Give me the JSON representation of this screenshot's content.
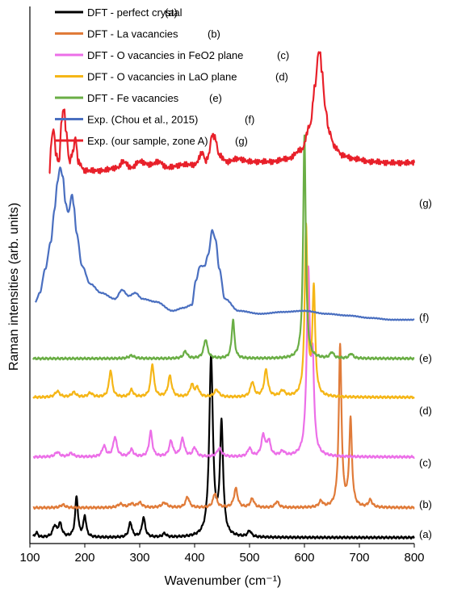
{
  "chart_data": {
    "type": "line",
    "xlabel": "Wavenumber (cm⁻¹)",
    "ylabel": "Raman intensities (arb. units)",
    "xlim": [
      100,
      800
    ],
    "x_ticks": [
      "100",
      "200",
      "300",
      "400",
      "500",
      "600",
      "700",
      "800"
    ],
    "grid": false,
    "legend_position": "top-left",
    "series": [
      {
        "name": "DFT - perfect crystal",
        "tag": "(a)",
        "color": "#000000",
        "baseline": 0,
        "peaks": [
          [
            112,
            0.08,
            3
          ],
          [
            145,
            0.18,
            4
          ],
          [
            155,
            0.22,
            4
          ],
          [
            185,
            0.68,
            3
          ],
          [
            200,
            0.35,
            3
          ],
          [
            283,
            0.25,
            3.5
          ],
          [
            307,
            0.33,
            3.5
          ],
          [
            345,
            0.06,
            4
          ],
          [
            430,
            3.0,
            4
          ],
          [
            449,
            1.85,
            3.5
          ],
          [
            500,
            0.1,
            4
          ]
        ]
      },
      {
        "name": "DFT - La vacancies",
        "tag": "(b)",
        "color": "#E07B39",
        "baseline": 0.5,
        "peaks": [
          [
            160,
            0.05,
            5
          ],
          [
            265,
            0.06,
            6
          ],
          [
            285,
            0.06,
            5
          ],
          [
            300,
            0.08,
            5
          ],
          [
            345,
            0.08,
            6
          ],
          [
            387,
            0.18,
            4
          ],
          [
            437,
            0.24,
            4
          ],
          [
            475,
            0.32,
            4
          ],
          [
            505,
            0.15,
            4
          ],
          [
            550,
            0.1,
            4
          ],
          [
            630,
            0.1,
            4
          ],
          [
            665,
            2.7,
            3
          ],
          [
            684,
            1.45,
            3
          ],
          [
            720,
            0.12,
            4
          ]
        ]
      },
      {
        "name": "DFT - O vacancies in FeO2 plane",
        "tag": "(c)",
        "color": "#EC6FE8",
        "baseline": 1.35,
        "peaks": [
          [
            150,
            0.08,
            5
          ],
          [
            175,
            0.06,
            5
          ],
          [
            235,
            0.18,
            4
          ],
          [
            255,
            0.33,
            4
          ],
          [
            285,
            0.12,
            4
          ],
          [
            320,
            0.42,
            3.5
          ],
          [
            357,
            0.26,
            4
          ],
          [
            378,
            0.3,
            4
          ],
          [
            400,
            0.15,
            4
          ],
          [
            445,
            0.14,
            5
          ],
          [
            500,
            0.14,
            4
          ],
          [
            525,
            0.35,
            4
          ],
          [
            535,
            0.25,
            4
          ],
          [
            560,
            0.08,
            5
          ],
          [
            607,
            3.0,
            3.5
          ],
          [
            615,
            1.4,
            3
          ]
        ]
      },
      {
        "name": "DFT - O vacancies in LaO plane",
        "tag": "(d)",
        "color": "#F5B617",
        "baseline": 2.35,
        "peaks": [
          [
            150,
            0.1,
            5
          ],
          [
            180,
            0.08,
            5
          ],
          [
            210,
            0.07,
            5
          ],
          [
            247,
            0.45,
            3.5
          ],
          [
            285,
            0.12,
            4
          ],
          [
            323,
            0.55,
            3.5
          ],
          [
            355,
            0.35,
            4
          ],
          [
            395,
            0.2,
            4
          ],
          [
            405,
            0.15,
            4
          ],
          [
            440,
            0.12,
            5
          ],
          [
            505,
            0.25,
            4
          ],
          [
            530,
            0.45,
            4
          ],
          [
            560,
            0.1,
            5
          ],
          [
            603,
            2.85,
            3
          ],
          [
            617,
            1.8,
            3
          ]
        ]
      },
      {
        "name": "DFT - Fe vacancies",
        "tag": "(e)",
        "color": "#6AAE45",
        "baseline": 3.0,
        "peaks": [
          [
            285,
            0.05,
            6
          ],
          [
            383,
            0.12,
            4
          ],
          [
            420,
            0.32,
            4
          ],
          [
            470,
            0.65,
            3
          ],
          [
            600,
            3.75,
            2.8
          ],
          [
            650,
            0.1,
            4
          ],
          [
            685,
            0.08,
            4
          ]
        ]
      },
      {
        "name": "Exp. (Chou et al., 2015)",
        "tag": "(f)",
        "color": "#4A6FC0",
        "baseline": 3.65,
        "peaks": []
      },
      {
        "name": "Exp. (our sample, zone A)",
        "tag": "(g)",
        "color": "#E8202A",
        "baseline": 6.05,
        "peaks": []
      }
    ],
    "exp_f_points": [
      [
        110,
        3.95
      ],
      [
        118,
        4.1
      ],
      [
        128,
        4.5
      ],
      [
        138,
        4.95
      ],
      [
        145,
        5.5
      ],
      [
        150,
        5.95
      ],
      [
        155,
        6.2
      ],
      [
        160,
        6.05
      ],
      [
        165,
        5.6
      ],
      [
        170,
        5.45
      ],
      [
        177,
        5.75
      ],
      [
        180,
        5.55
      ],
      [
        185,
        5.1
      ],
      [
        195,
        4.55
      ],
      [
        210,
        4.25
      ],
      [
        230,
        4.1
      ],
      [
        255,
        4.0
      ],
      [
        268,
        4.15
      ],
      [
        280,
        4.05
      ],
      [
        292,
        4.1
      ],
      [
        305,
        4.0
      ],
      [
        330,
        3.95
      ],
      [
        360,
        3.8
      ],
      [
        380,
        3.85
      ],
      [
        395,
        3.9
      ],
      [
        402,
        4.3
      ],
      [
        410,
        4.55
      ],
      [
        418,
        4.55
      ],
      [
        425,
        4.75
      ],
      [
        432,
        5.15
      ],
      [
        438,
        5.0
      ],
      [
        445,
        4.5
      ],
      [
        455,
        4.0
      ],
      [
        480,
        3.8
      ],
      [
        520,
        3.75
      ],
      [
        560,
        3.78
      ],
      [
        600,
        3.8
      ],
      [
        640,
        3.75
      ],
      [
        680,
        3.72
      ],
      [
        720,
        3.68
      ],
      [
        760,
        3.65
      ],
      [
        800,
        3.65
      ]
    ],
    "exp_g_points": [
      [
        135,
        6.1
      ],
      [
        140,
        6.7
      ],
      [
        143,
        6.85
      ],
      [
        148,
        6.4
      ],
      [
        153,
        6.3
      ],
      [
        158,
        7.0
      ],
      [
        162,
        7.2
      ],
      [
        166,
        6.8
      ],
      [
        172,
        6.3
      ],
      [
        178,
        6.45
      ],
      [
        183,
        6.7
      ],
      [
        188,
        6.3
      ],
      [
        200,
        6.15
      ],
      [
        230,
        6.15
      ],
      [
        260,
        6.2
      ],
      [
        270,
        6.3
      ],
      [
        285,
        6.2
      ],
      [
        300,
        6.3
      ],
      [
        320,
        6.25
      ],
      [
        335,
        6.3
      ],
      [
        350,
        6.2
      ],
      [
        380,
        6.25
      ],
      [
        400,
        6.25
      ],
      [
        415,
        6.45
      ],
      [
        420,
        6.3
      ],
      [
        425,
        6.4
      ],
      [
        432,
        6.75
      ],
      [
        437,
        6.7
      ],
      [
        445,
        6.4
      ],
      [
        460,
        6.3
      ],
      [
        480,
        6.35
      ],
      [
        500,
        6.3
      ],
      [
        540,
        6.3
      ],
      [
        570,
        6.35
      ],
      [
        595,
        6.5
      ],
      [
        610,
        6.9
      ],
      [
        620,
        7.6
      ],
      [
        625,
        8.1
      ],
      [
        628,
        8.15
      ],
      [
        632,
        7.8
      ],
      [
        638,
        7.2
      ],
      [
        645,
        6.8
      ],
      [
        655,
        6.55
      ],
      [
        670,
        6.4
      ],
      [
        690,
        6.35
      ],
      [
        720,
        6.3
      ],
      [
        760,
        6.28
      ],
      [
        800,
        6.28
      ]
    ]
  }
}
